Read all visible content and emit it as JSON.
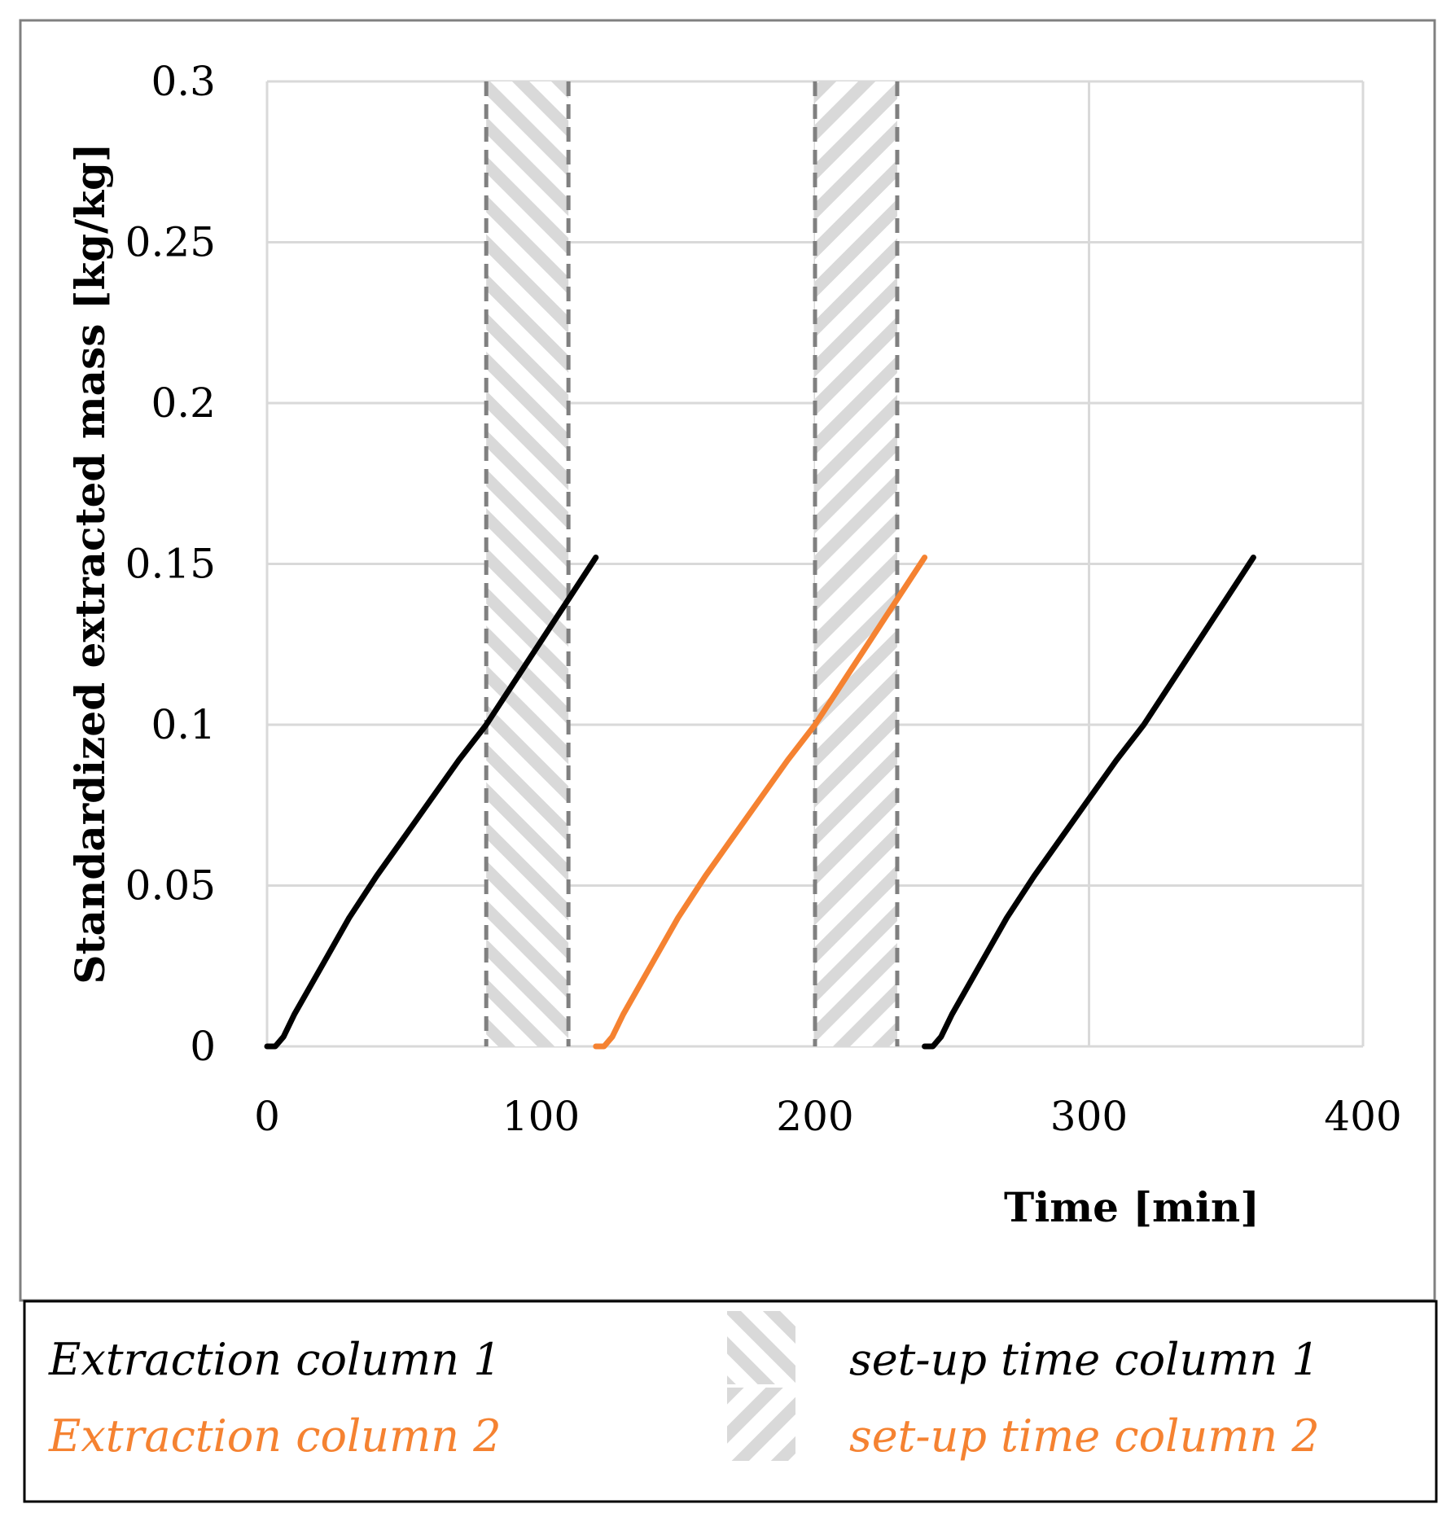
{
  "chart_data": {
    "type": "line",
    "xlabel": "Time [min]",
    "ylabel": "Standardized extracted mass [kg/kg]",
    "xlim": [
      0,
      400
    ],
    "ylim": [
      0,
      0.3
    ],
    "x_ticks": [
      0,
      100,
      200,
      300,
      400
    ],
    "x_tick_labels": [
      "0",
      "100",
      "200",
      "300",
      "400"
    ],
    "y_ticks": [
      0,
      0.05,
      0.1,
      0.15,
      0.2,
      0.25,
      0.3
    ],
    "y_tick_labels": [
      "0",
      "0.05",
      "0.1",
      "0.15",
      "0.2",
      "0.25",
      "0.3"
    ],
    "grid": true,
    "series": [
      {
        "name": "Extraction column 1",
        "color": "#000000",
        "segments": [
          {
            "x": [
              0,
              3,
              6,
              10,
              20,
              30,
              40,
              50,
              60,
              70,
              80,
              90,
              100,
              110,
              120
            ],
            "y": [
              0,
              0.0,
              0.003,
              0.01,
              0.025,
              0.04,
              0.053,
              0.065,
              0.077,
              0.089,
              0.1,
              0.113,
              0.126,
              0.139,
              0.152
            ]
          },
          {
            "x": [
              240,
              243,
              246,
              250,
              260,
              270,
              280,
              290,
              300,
              310,
              320,
              330,
              340,
              350,
              360
            ],
            "y": [
              0,
              0.0,
              0.003,
              0.01,
              0.025,
              0.04,
              0.053,
              0.065,
              0.077,
              0.089,
              0.1,
              0.113,
              0.126,
              0.139,
              0.152
            ]
          }
        ]
      },
      {
        "name": "Extraction column 2",
        "color": "#f58231",
        "segments": [
          {
            "x": [
              120,
              123,
              126,
              130,
              140,
              150,
              160,
              170,
              180,
              190,
              200,
              210,
              220,
              230,
              240
            ],
            "y": [
              0,
              0.0,
              0.003,
              0.01,
              0.025,
              0.04,
              0.053,
              0.065,
              0.077,
              0.089,
              0.1,
              0.113,
              0.126,
              0.139,
              0.152
            ]
          }
        ]
      }
    ],
    "bands": [
      {
        "name": "set-up time column 1",
        "x_start": 80,
        "x_end": 110,
        "hatch": "backslash",
        "color": "#d9d9d9"
      },
      {
        "name": "set-up time column 2",
        "x_start": 200,
        "x_end": 230,
        "hatch": "slash",
        "color": "#d9d9d9"
      }
    ],
    "legend": {
      "position": "bottom",
      "entries": [
        {
          "label": "Extraction column 1",
          "color": "#000000",
          "kind": "line"
        },
        {
          "label": "Extraction column 2",
          "color": "#f58231",
          "kind": "line"
        },
        {
          "label": "set-up time column 1",
          "color": "#000000",
          "kind": "band",
          "hatch": "backslash"
        },
        {
          "label": "set-up time column 2",
          "color": "#f58231",
          "kind": "band",
          "hatch": "slash"
        }
      ]
    }
  }
}
